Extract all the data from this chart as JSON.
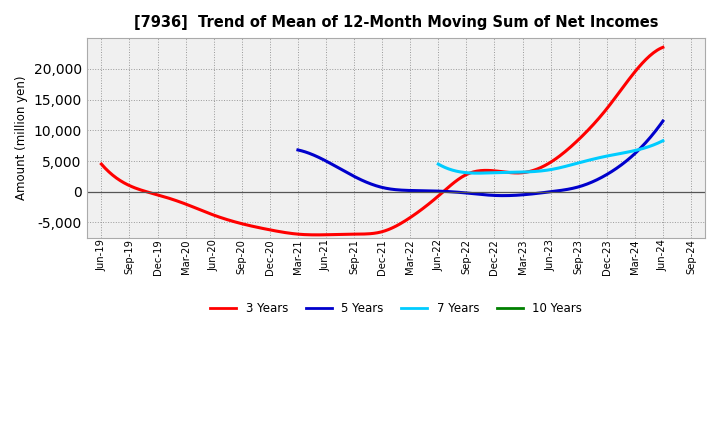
{
  "title": "[7936]  Trend of Mean of 12-Month Moving Sum of Net Incomes",
  "ylabel": "Amount (million yen)",
  "background_color": "#ffffff",
  "plot_bg_color": "#ffffff",
  "ylim": [
    -7500,
    25000
  ],
  "yticks": [
    -5000,
    0,
    5000,
    10000,
    15000,
    20000
  ],
  "x_labels": [
    "Jun-19",
    "Sep-19",
    "Dec-19",
    "Mar-20",
    "Jun-20",
    "Sep-20",
    "Dec-20",
    "Mar-21",
    "Jun-21",
    "Sep-21",
    "Dec-21",
    "Mar-22",
    "Jun-22",
    "Sep-22",
    "Dec-22",
    "Mar-23",
    "Jun-23",
    "Sep-23",
    "Dec-23",
    "Mar-24",
    "Jun-24",
    "Sep-24"
  ],
  "series": {
    "3 Years": {
      "color": "#ff0000",
      "linewidth": 2.2,
      "values": [
        4500,
        1000,
        -500,
        -2000,
        -3800,
        -5200,
        -6200,
        -6900,
        -7000,
        -6900,
        -6500,
        -4200,
        -700,
        2800,
        3400,
        3100,
        4800,
        8500,
        13500,
        19500,
        23500,
        null
      ]
    },
    "5 Years": {
      "color": "#0000cc",
      "linewidth": 2.2,
      "values": [
        null,
        null,
        null,
        null,
        null,
        null,
        null,
        6800,
        5000,
        2500,
        700,
        200,
        100,
        -200,
        -600,
        -500,
        0,
        800,
        2800,
        6200,
        11500,
        null
      ]
    },
    "7 Years": {
      "color": "#00ccff",
      "linewidth": 2.2,
      "values": [
        null,
        null,
        null,
        null,
        null,
        null,
        null,
        null,
        null,
        null,
        null,
        null,
        4500,
        3100,
        3100,
        3200,
        3600,
        4700,
        5800,
        6700,
        8300,
        null
      ]
    },
    "10 Years": {
      "color": "#008000",
      "linewidth": 2.2,
      "values": [
        null,
        null,
        null,
        null,
        null,
        null,
        null,
        null,
        null,
        null,
        null,
        null,
        null,
        null,
        null,
        null,
        null,
        null,
        null,
        null,
        null,
        null
      ]
    }
  },
  "legend_items": [
    "3 Years",
    "5 Years",
    "7 Years",
    "10 Years"
  ],
  "legend_colors": [
    "#ff0000",
    "#0000cc",
    "#00ccff",
    "#008000"
  ]
}
